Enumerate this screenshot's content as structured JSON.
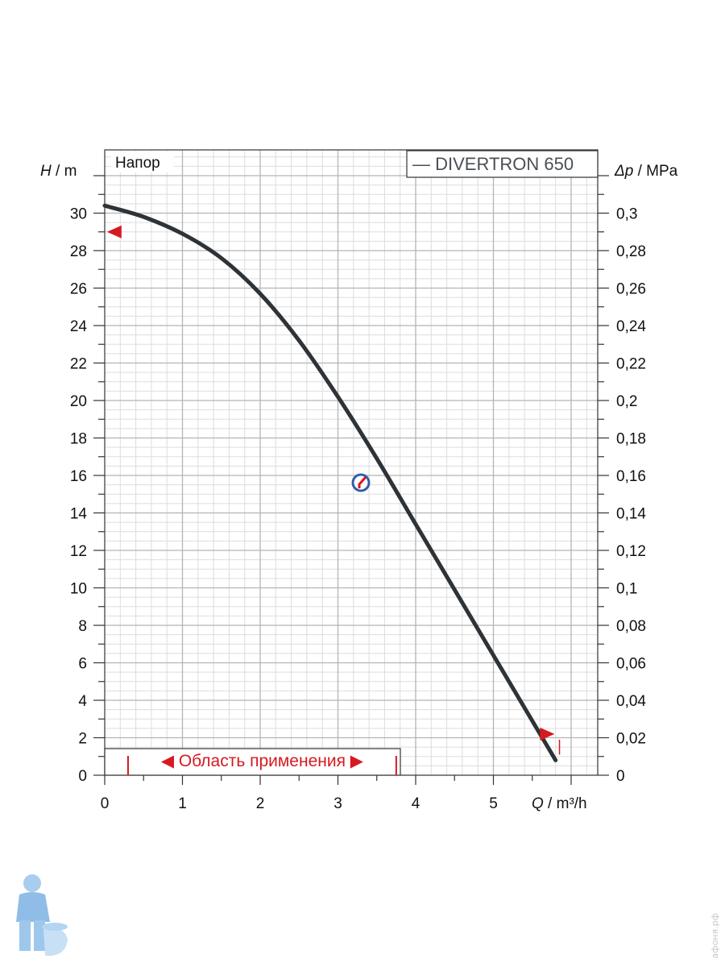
{
  "chart_data": {
    "type": "line",
    "header_label": "Напор",
    "legend": "— DIVERTRON 650",
    "ylabel_left": {
      "symbol": "H",
      "unit": " / m"
    },
    "ylabel_right": {
      "symbol": "Δp",
      "unit": " / MPa"
    },
    "xlabel": {
      "symbol": "Q",
      "unit": " / m³/h"
    },
    "xlim": [
      0,
      6.3
    ],
    "ylim": [
      0,
      33
    ],
    "x_ticks": [
      "0",
      "1",
      "2",
      "3",
      "4",
      "5"
    ],
    "y_ticks_left": [
      "0",
      "2",
      "4",
      "6",
      "8",
      "10",
      "12",
      "14",
      "16",
      "18",
      "20",
      "22",
      "24",
      "26",
      "28",
      "30"
    ],
    "y_ticks_right": [
      "0",
      "0,02",
      "0,04",
      "0,06",
      "0,08",
      "0,1",
      "0,12",
      "0,14",
      "0,16",
      "0,18",
      "0,2",
      "0,22",
      "0,24",
      "0,26",
      "0,28",
      "0,3"
    ],
    "grid": true,
    "legend_position": "top-right",
    "series": [
      {
        "name": "DIVERTRON 650",
        "color": "#2e3338",
        "x": [
          0,
          0.5,
          1.0,
          1.5,
          2.0,
          2.5,
          3.0,
          3.5,
          4.0,
          4.5,
          5.0,
          5.5,
          5.8
        ],
        "y": [
          30.4,
          29.8,
          28.9,
          27.6,
          25.7,
          23.2,
          20.2,
          16.9,
          13.4,
          9.9,
          6.4,
          2.9,
          0.8
        ]
      }
    ],
    "application_range": {
      "label": "◀ Область применения ▶",
      "x_start": 0.3,
      "x_end": 3.75,
      "color": "#d71920"
    },
    "markers": [
      {
        "x": 0.05,
        "y": 29.0,
        "direction": "left",
        "color": "#d71920"
      },
      {
        "x": 5.6,
        "y": 2.2,
        "direction": "right",
        "color": "#d71920"
      }
    ]
  },
  "watermark": "афоня.рф"
}
